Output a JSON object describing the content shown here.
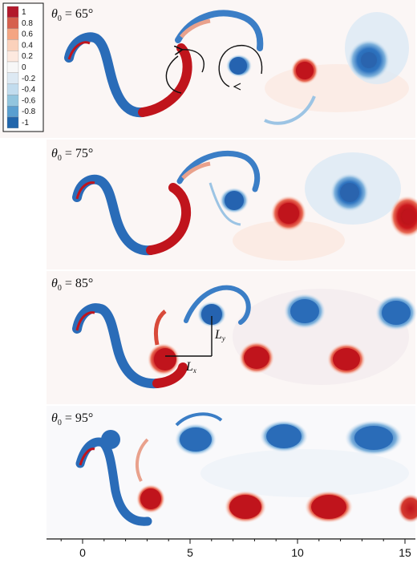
{
  "panels": [
    {
      "theta_symbol": "θ",
      "theta_sub": "0",
      "theta_value": " = 65°"
    },
    {
      "theta_symbol": "θ",
      "theta_sub": "0",
      "theta_value": " = 75°"
    },
    {
      "theta_symbol": "θ",
      "theta_sub": "0",
      "theta_value": " = 85°"
    },
    {
      "theta_symbol": "θ",
      "theta_sub": "0",
      "theta_value": " = 95°"
    }
  ],
  "legend": {
    "levels": [
      "1",
      "0.8",
      "0.6",
      "0.4",
      "0.2",
      "0",
      "-0.2",
      "-0.4",
      "-0.6",
      "-0.8",
      "-1"
    ],
    "colors": [
      "#b2182b",
      "#d6604d",
      "#f4a582",
      "#fbd1bb",
      "#fde9df",
      "#f7f7f7",
      "#dde9f3",
      "#c2dcee",
      "#92c5de",
      "#5a9fd0",
      "#2166ac"
    ]
  },
  "axis": {
    "ticks": [
      "0",
      "5",
      "10",
      "15"
    ]
  },
  "annotations": {
    "lx_main": "L",
    "lx_sub": "x",
    "ly_main": "L",
    "ly_sub": "y"
  },
  "colors": {
    "positive": "#c0141c",
    "negative": "#2a6cb8"
  }
}
